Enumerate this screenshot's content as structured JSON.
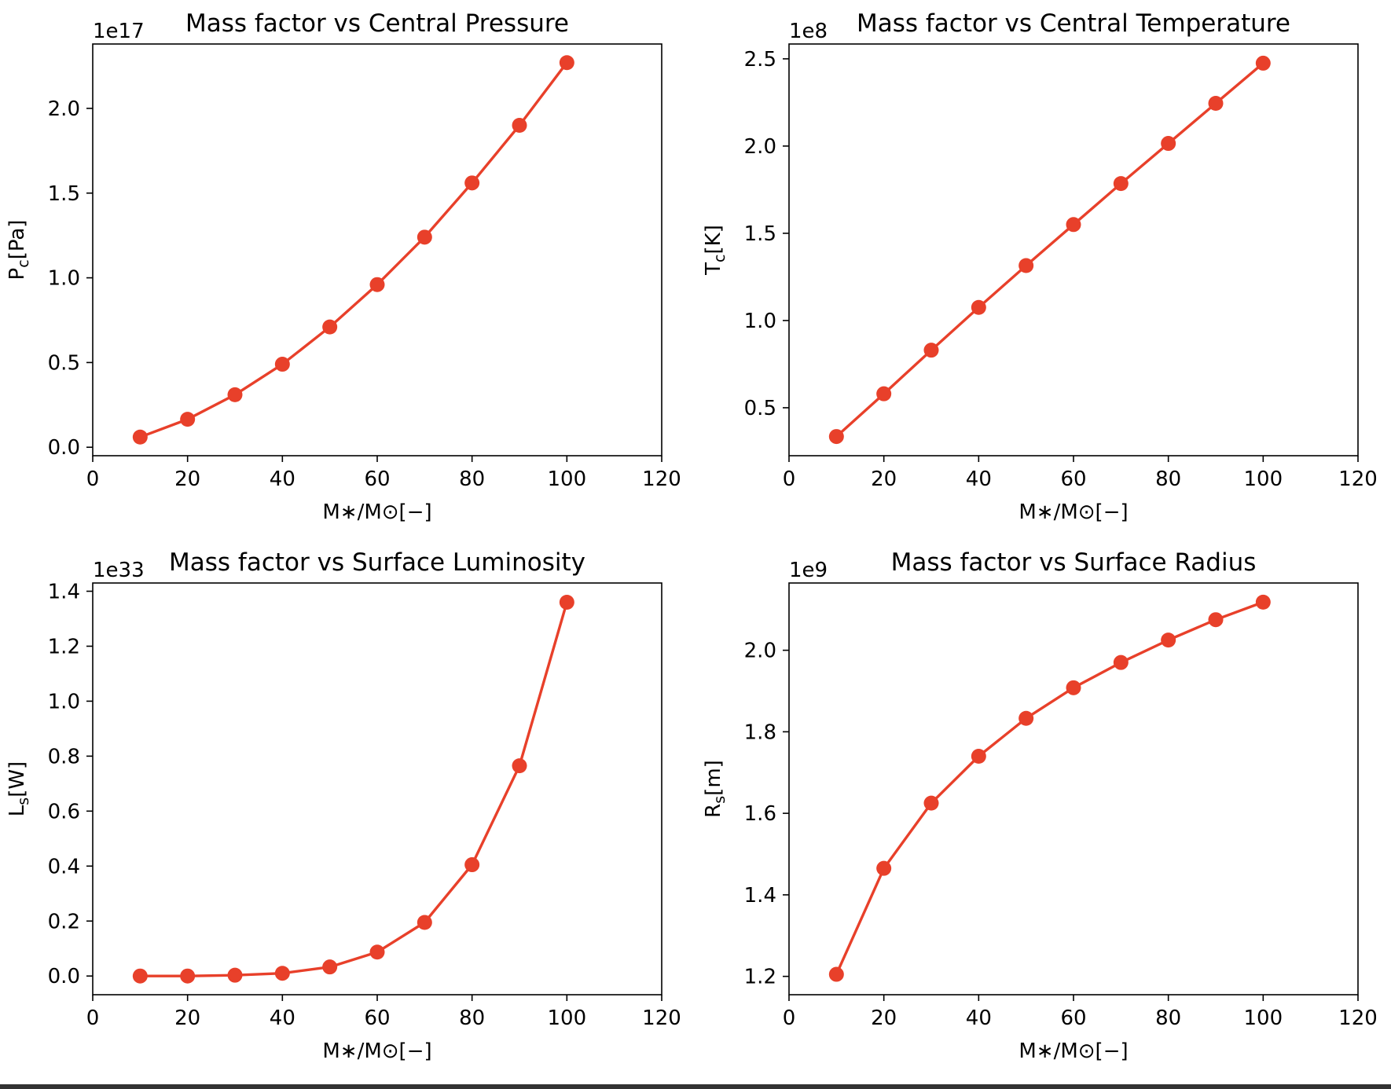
{
  "chart_data": [
    {
      "type": "line",
      "title": "Mass factor vs Central Pressure",
      "xlabel": "M∗/M⊙[−]",
      "ylabel_main": "P",
      "ylabel_sub": "c",
      "ylabel_unit": "[Pa]",
      "offset_text": "1e17",
      "xlim": [
        0,
        120
      ],
      "ylim": [
        -0.05,
        2.38
      ],
      "xticks": [
        0,
        20,
        40,
        60,
        80,
        100,
        120
      ],
      "yticks": [
        0.0,
        0.5,
        1.0,
        1.5,
        2.0
      ],
      "ytick_labels": [
        "0.0",
        "0.5",
        "1.0",
        "1.5",
        "2.0"
      ],
      "grid": false,
      "series": [
        {
          "x": [
            10,
            20,
            30,
            40,
            50,
            60,
            70,
            80,
            90,
            100
          ],
          "y": [
            0.06,
            0.165,
            0.31,
            0.49,
            0.71,
            0.96,
            1.24,
            1.56,
            1.9,
            2.27
          ]
        }
      ]
    },
    {
      "type": "line",
      "title": "Mass factor vs Central Temperature",
      "xlabel": "M∗/M⊙[−]",
      "ylabel_main": "T",
      "ylabel_sub": "c",
      "ylabel_unit": "[K]",
      "offset_text": "1e8",
      "xlim": [
        0,
        120
      ],
      "ylim": [
        0.225,
        2.585
      ],
      "xticks": [
        0,
        20,
        40,
        60,
        80,
        100,
        120
      ],
      "yticks": [
        0.5,
        1.0,
        1.5,
        2.0,
        2.5
      ],
      "ytick_labels": [
        "0.5",
        "1.0",
        "1.5",
        "2.0",
        "2.5"
      ],
      "grid": false,
      "series": [
        {
          "x": [
            10,
            20,
            30,
            40,
            50,
            60,
            70,
            80,
            90,
            100
          ],
          "y": [
            0.335,
            0.58,
            0.83,
            1.075,
            1.315,
            1.55,
            1.785,
            2.015,
            2.245,
            2.475
          ]
        }
      ]
    },
    {
      "type": "line",
      "title": "Mass factor vs Surface Luminosity",
      "xlabel": "M∗/M⊙[−]",
      "ylabel_main": "L",
      "ylabel_sub": "s",
      "ylabel_unit": "[W]",
      "offset_text": "1e33",
      "xlim": [
        0,
        120
      ],
      "ylim": [
        -0.068,
        1.43
      ],
      "xticks": [
        0,
        20,
        40,
        60,
        80,
        100,
        120
      ],
      "yticks": [
        0.0,
        0.2,
        0.4,
        0.6,
        0.8,
        1.0,
        1.2,
        1.4
      ],
      "ytick_labels": [
        "0.0",
        "0.2",
        "0.4",
        "0.6",
        "0.8",
        "1.0",
        "1.2",
        "1.4"
      ],
      "grid": false,
      "series": [
        {
          "x": [
            10,
            20,
            30,
            40,
            50,
            60,
            70,
            80,
            90,
            100
          ],
          "y": [
            0.0,
            0.0,
            0.003,
            0.01,
            0.033,
            0.087,
            0.195,
            0.405,
            0.765,
            1.36
          ]
        }
      ]
    },
    {
      "type": "line",
      "title": "Mass factor vs Surface Radius",
      "xlabel": "M∗/M⊙[−]",
      "ylabel_main": "R",
      "ylabel_sub": "s",
      "ylabel_unit": "[m]",
      "offset_text": "1e9",
      "xlim": [
        0,
        120
      ],
      "ylim": [
        1.155,
        2.165
      ],
      "xticks": [
        0,
        20,
        40,
        60,
        80,
        100,
        120
      ],
      "yticks": [
        1.2,
        1.4,
        1.6,
        1.8,
        2.0
      ],
      "ytick_labels": [
        "1.2",
        "1.4",
        "1.6",
        "1.8",
        "2.0"
      ],
      "grid": false,
      "series": [
        {
          "x": [
            10,
            20,
            30,
            40,
            50,
            60,
            70,
            80,
            90,
            100
          ],
          "y": [
            1.205,
            1.465,
            1.625,
            1.74,
            1.833,
            1.908,
            1.97,
            2.025,
            2.075,
            2.118
          ]
        }
      ]
    }
  ],
  "colors": {
    "series": "#e8402a",
    "axes": "#000000"
  }
}
